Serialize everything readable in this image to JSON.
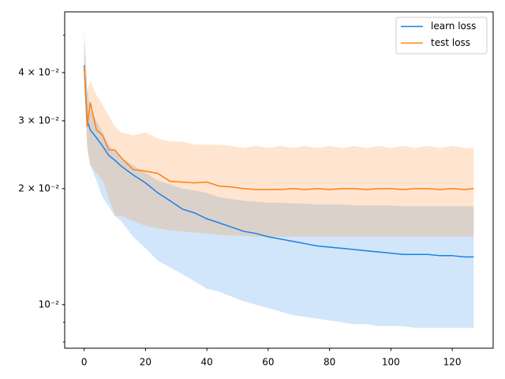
{
  "chart_data": {
    "type": "line",
    "yscale": "log",
    "x": [
      0,
      1,
      2,
      4,
      6,
      8,
      10,
      12,
      16,
      20,
      24,
      28,
      32,
      36,
      40,
      44,
      48,
      52,
      56,
      60,
      64,
      68,
      72,
      76,
      80,
      84,
      88,
      92,
      96,
      100,
      104,
      108,
      112,
      116,
      120,
      124,
      127
    ],
    "series": [
      {
        "name": "learn loss",
        "color": "#1a80e6",
        "values": [
          0.0418,
          0.03,
          0.0284,
          0.0271,
          0.0258,
          0.0244,
          0.0237,
          0.0229,
          0.0217,
          0.0207,
          0.0195,
          0.0186,
          0.0177,
          0.0173,
          0.0167,
          0.0163,
          0.0159,
          0.0155,
          0.0153,
          0.015,
          0.0148,
          0.0146,
          0.0144,
          0.0142,
          0.0141,
          0.014,
          0.0139,
          0.0138,
          0.0137,
          0.0136,
          0.0135,
          0.0135,
          0.0135,
          0.0134,
          0.0134,
          0.0133,
          0.0133
        ],
        "lower": [
          0.038,
          0.026,
          0.023,
          0.021,
          0.019,
          0.018,
          0.017,
          0.0165,
          0.015,
          0.014,
          0.013,
          0.0125,
          0.012,
          0.0115,
          0.011,
          0.0108,
          0.0105,
          0.0102,
          0.01,
          0.0098,
          0.0096,
          0.0094,
          0.0093,
          0.0092,
          0.0091,
          0.009,
          0.0089,
          0.0089,
          0.0088,
          0.0088,
          0.0088,
          0.0087,
          0.0087,
          0.0087,
          0.0087,
          0.0087,
          0.0087
        ],
        "upper": [
          0.052,
          0.036,
          0.032,
          0.03,
          0.028,
          0.026,
          0.025,
          0.024,
          0.023,
          0.022,
          0.021,
          0.0205,
          0.02,
          0.0198,
          0.0195,
          0.019,
          0.0188,
          0.0186,
          0.0185,
          0.0184,
          0.0184,
          0.0183,
          0.0183,
          0.0182,
          0.0182,
          0.0182,
          0.0181,
          0.0181,
          0.0181,
          0.0181,
          0.018,
          0.018,
          0.018,
          0.018,
          0.018,
          0.018,
          0.018
        ]
      },
      {
        "name": "test loss",
        "color": "#ff7f0e",
        "values": [
          0.0415,
          0.029,
          0.0334,
          0.0284,
          0.0275,
          0.0252,
          0.0252,
          0.0241,
          0.0224,
          0.0222,
          0.0219,
          0.0209,
          0.0208,
          0.0207,
          0.0208,
          0.0203,
          0.0202,
          0.02,
          0.0199,
          0.0199,
          0.0199,
          0.02,
          0.0199,
          0.02,
          0.0199,
          0.02,
          0.02,
          0.0199,
          0.02,
          0.02,
          0.0199,
          0.02,
          0.02,
          0.0199,
          0.02,
          0.0199,
          0.02
        ],
        "lower": [
          0.039,
          0.025,
          0.023,
          0.022,
          0.021,
          0.019,
          0.017,
          0.017,
          0.0165,
          0.016,
          0.0158,
          0.0156,
          0.0155,
          0.0154,
          0.0153,
          0.0152,
          0.0151,
          0.0151,
          0.015,
          0.015,
          0.015,
          0.015,
          0.015,
          0.015,
          0.015,
          0.015,
          0.015,
          0.015,
          0.015,
          0.015,
          0.015,
          0.015,
          0.015,
          0.015,
          0.015,
          0.015,
          0.015
        ],
        "upper": [
          0.048,
          0.036,
          0.038,
          0.035,
          0.033,
          0.031,
          0.029,
          0.028,
          0.0275,
          0.028,
          0.027,
          0.0265,
          0.0265,
          0.026,
          0.026,
          0.026,
          0.0258,
          0.0255,
          0.0258,
          0.0255,
          0.0258,
          0.0255,
          0.0258,
          0.0255,
          0.0258,
          0.0255,
          0.0258,
          0.0255,
          0.0258,
          0.0255,
          0.0258,
          0.0255,
          0.0258,
          0.0255,
          0.0258,
          0.0255,
          0.0255
        ]
      }
    ],
    "xlim": [
      -6.35,
      133.35
    ],
    "xticks": [
      0,
      20,
      40,
      60,
      80,
      100,
      120
    ],
    "ylim": [
      0.00771,
      0.0575
    ],
    "yticks": [
      {
        "value": 0.01,
        "label": "10⁻²"
      },
      {
        "value": 0.02,
        "label": "2 × 10⁻²"
      },
      {
        "value": 0.03,
        "label": "3 × 10⁻²"
      },
      {
        "value": 0.04,
        "label": "4 × 10⁻²"
      }
    ],
    "yminorticks": [
      0.008,
      0.009,
      0.05
    ],
    "legend": "upper right"
  }
}
